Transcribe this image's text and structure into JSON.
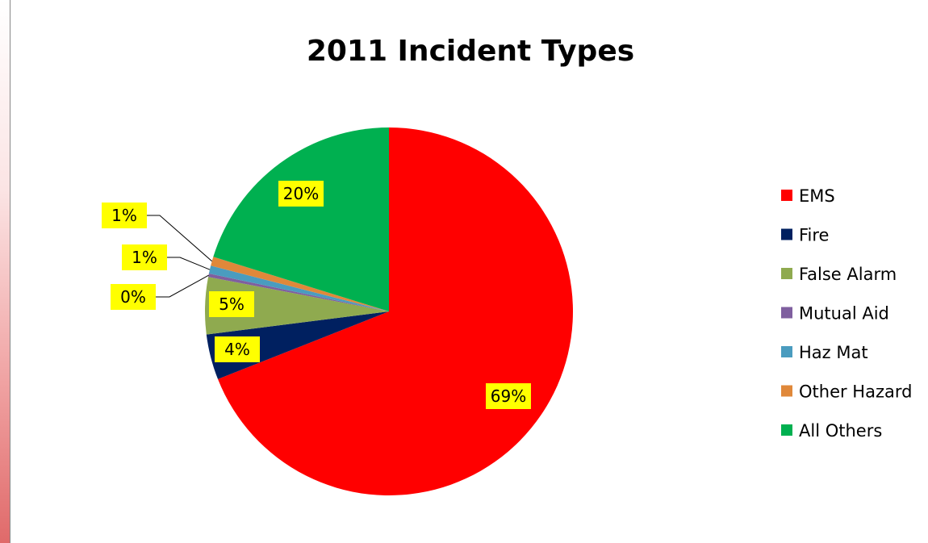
{
  "chart_data": {
    "type": "pie",
    "title": "2011 Incident Types",
    "categories": [
      "EMS",
      "Fire",
      "False Alarm",
      "Mutual Aid",
      "Haz Mat",
      "Other Hazard",
      "All Others"
    ],
    "values": [
      69,
      4,
      5,
      0.3,
      0.7,
      0.8,
      20.2
    ],
    "data_labels": [
      "69%",
      "4%",
      "5%",
      "0%",
      "1%",
      "1%",
      "20%"
    ],
    "colors": [
      "#ff0000",
      "#002060",
      "#8faa4f",
      "#7f5f9f",
      "#4a9cbf",
      "#e0883a",
      "#00b050"
    ],
    "label_background": "#ffff00",
    "start_angle_deg": 0,
    "direction": "clockwise",
    "legend": "right"
  }
}
